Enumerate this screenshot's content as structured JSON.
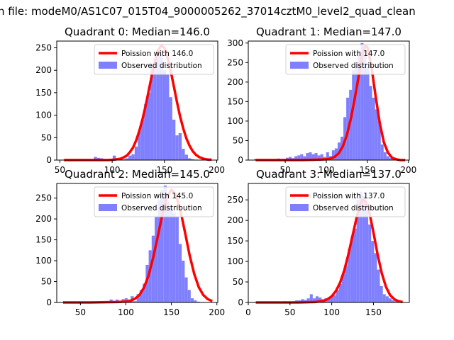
{
  "figure": {
    "suptitle": "n file: modeM0/AS1C07_015T04_9000005262_37014cztM0_level2_quad_clean"
  },
  "colors": {
    "fit": "#ff0000",
    "hist": "#8080ff"
  },
  "chart_data": [
    {
      "type": "bar",
      "title": "Quadrant 0: Median=146.0",
      "median": 146.0,
      "xlim": [
        47,
        201
      ],
      "ylim": [
        0,
        265
      ],
      "xticks": [
        50,
        100,
        150,
        200
      ],
      "yticks": [
        0,
        50,
        100,
        150,
        200,
        250
      ],
      "legend": {
        "placement": "top-right",
        "entries": [
          "Poission with 146.0",
          "Observed distribution"
        ]
      },
      "series": [
        {
          "name": "Observed distribution",
          "type": "histogram",
          "bin_width": 3,
          "x": [
            54,
            57,
            60,
            63,
            66,
            69,
            72,
            75,
            78,
            81,
            84,
            87,
            90,
            93,
            96,
            99,
            102,
            105,
            108,
            111,
            114,
            117,
            120,
            123,
            126,
            129,
            132,
            135,
            138,
            141,
            144,
            147,
            150,
            153,
            156,
            159,
            162,
            165,
            168,
            171,
            174,
            177,
            180,
            183,
            186,
            189,
            192,
            195
          ],
          "y": [
            1,
            1,
            1,
            1,
            1,
            1,
            1,
            1,
            1,
            1,
            7,
            5,
            4,
            2,
            1,
            1,
            10,
            1,
            1,
            2,
            4,
            10,
            13,
            30,
            65,
            90,
            125,
            150,
            215,
            225,
            245,
            235,
            200,
            190,
            140,
            90,
            55,
            60,
            25,
            12,
            4,
            2,
            1,
            0,
            0,
            0,
            0,
            0
          ]
        },
        {
          "name": "Poission with 146.0",
          "type": "line",
          "x": [
            54,
            60,
            66,
            72,
            78,
            84,
            90,
            96,
            102,
            105,
            108,
            111,
            114,
            117,
            120,
            123,
            126,
            129,
            132,
            135,
            138,
            141,
            144,
            147,
            150,
            153,
            156,
            159,
            162,
            165,
            168,
            171,
            174,
            177,
            180,
            183,
            186,
            189,
            192,
            195
          ],
          "y": [
            0,
            0,
            0,
            0,
            0,
            0,
            0,
            0,
            1,
            2,
            3,
            6,
            10,
            18,
            28,
            44,
            65,
            91,
            121,
            155,
            189,
            221,
            245,
            255,
            250,
            229,
            198,
            164,
            129,
            97,
            70,
            48,
            32,
            20,
            12,
            7,
            4,
            2,
            1,
            1
          ]
        }
      ]
    },
    {
      "type": "bar",
      "title": "Quadrant 1: Median=147.0",
      "median": 147.0,
      "xlim": [
        5,
        201
      ],
      "ylim": [
        0,
        305
      ],
      "xticks": [
        50,
        100,
        150,
        200
      ],
      "yticks": [
        0,
        50,
        100,
        150,
        200,
        250,
        300
      ],
      "legend": {
        "placement": "top-right",
        "entries": [
          "Poission with 147.0",
          "Observed distribution"
        ]
      },
      "series": [
        {
          "name": "Observed distribution",
          "type": "histogram",
          "bin_width": 3.5,
          "x": [
            14,
            17.5,
            21,
            24.5,
            28,
            31.5,
            35,
            38.5,
            42,
            45.5,
            49,
            52.5,
            56,
            59.5,
            63,
            66.5,
            70,
            73.5,
            77,
            80.5,
            84,
            87.5,
            91,
            94.5,
            98,
            101.5,
            105,
            108.5,
            112,
            115.5,
            119,
            122.5,
            126,
            129.5,
            133,
            136.5,
            140,
            143.5,
            147,
            150.5,
            154,
            157.5,
            161,
            164.5,
            168,
            171.5,
            175,
            178.5,
            182,
            185.5,
            189,
            192.5,
            196
          ],
          "y": [
            3,
            2,
            1,
            2,
            2,
            2,
            1,
            2,
            4,
            2,
            3,
            6,
            8,
            5,
            10,
            12,
            15,
            10,
            18,
            20,
            15,
            18,
            12,
            15,
            8,
            20,
            10,
            25,
            30,
            45,
            60,
            110,
            160,
            180,
            230,
            250,
            280,
            300,
            270,
            240,
            190,
            160,
            130,
            100,
            40,
            20,
            10,
            5,
            3,
            2,
            1,
            1,
            0
          ]
        },
        {
          "name": "Poission with 147.0",
          "type": "line",
          "x": [
            14,
            30,
            50,
            70,
            90,
            100,
            105,
            110,
            115,
            120,
            125,
            130,
            135,
            140,
            143.5,
            147,
            150,
            155,
            160,
            165,
            170,
            175,
            180,
            185,
            190,
            196
          ],
          "y": [
            0,
            0,
            0,
            0,
            1,
            2,
            4,
            8,
            17,
            35,
            64,
            108,
            163,
            223,
            268,
            292,
            290,
            238,
            164,
            95,
            46,
            19,
            6,
            2,
            0,
            0
          ]
        }
      ]
    },
    {
      "type": "bar",
      "title": "Quadrant 2: Median=145.0",
      "median": 145.0,
      "xlim": [
        24,
        201
      ],
      "ylim": [
        0,
        285
      ],
      "xticks": [
        50,
        100,
        150,
        200
      ],
      "yticks": [
        0,
        50,
        100,
        150,
        200,
        250
      ],
      "legend": {
        "placement": "top-right",
        "entries": [
          "Poission with 145.0",
          "Observed distribution"
        ]
      },
      "series": [
        {
          "name": "Observed distribution",
          "type": "histogram",
          "bin_width": 3.3,
          "x": [
            31,
            34.3,
            37.6,
            40.9,
            44.2,
            47.5,
            50.8,
            54.1,
            57.4,
            60.7,
            64,
            67.3,
            70.6,
            73.9,
            77.2,
            80.5,
            83.8,
            87.1,
            90.4,
            93.7,
            97,
            100.3,
            103.6,
            106.9,
            110.2,
            113.5,
            116.8,
            120.1,
            123.4,
            126.7,
            130,
            133.3,
            136.6,
            139.9,
            143.2,
            146.5,
            149.8,
            153.1,
            156.4,
            159.7,
            163,
            166.3,
            169.6,
            172.9,
            176.2,
            179.5,
            182.8,
            186.1,
            189.4,
            192.7
          ],
          "y": [
            1,
            1,
            1,
            1,
            1,
            1,
            1,
            1,
            1,
            1,
            1,
            1,
            1,
            1,
            1,
            2,
            7,
            4,
            7,
            3,
            8,
            10,
            7,
            15,
            3,
            20,
            30,
            45,
            90,
            125,
            160,
            205,
            245,
            270,
            280,
            240,
            225,
            215,
            205,
            140,
            100,
            60,
            30,
            10,
            5,
            2,
            1,
            1,
            0,
            0
          ]
        },
        {
          "name": "Poission with 145.0",
          "type": "line",
          "x": [
            31,
            60,
            90,
            100,
            105,
            110,
            115,
            120,
            125,
            130,
            135,
            140,
            145,
            150,
            155,
            160,
            165,
            170,
            175,
            180,
            185,
            190,
            195
          ],
          "y": [
            0,
            0,
            1,
            2,
            4,
            9,
            18,
            36,
            65,
            107,
            158,
            210,
            252,
            270,
            258,
            220,
            168,
            114,
            69,
            37,
            18,
            8,
            3
          ]
        }
      ]
    },
    {
      "type": "bar",
      "title": "Quadrant 3: Median=137.0",
      "median": 137.0,
      "xlim": [
        0,
        193
      ],
      "ylim": [
        0,
        290
      ],
      "xticks": [
        0,
        50,
        100,
        150
      ],
      "yticks": [
        0,
        50,
        100,
        150,
        200,
        250
      ],
      "legend": {
        "placement": "top-right",
        "entries": [
          "Poission with 137.0",
          "Observed distribution"
        ]
      },
      "series": [
        {
          "name": "Observed distribution",
          "type": "histogram",
          "bin_width": 3.5,
          "x": [
            9,
            12.5,
            16,
            19.5,
            23,
            26.5,
            30,
            33.5,
            37,
            40.5,
            44,
            47.5,
            51,
            54.5,
            58,
            61.5,
            65,
            68.5,
            72,
            75.5,
            79,
            82.5,
            86,
            89.5,
            93,
            96.5,
            100,
            103.5,
            107,
            110.5,
            114,
            117.5,
            121,
            124.5,
            128,
            131.5,
            135,
            138.5,
            142,
            145.5,
            149,
            152.5,
            156,
            159.5,
            163,
            166.5,
            170,
            173.5,
            177,
            180.5,
            184
          ],
          "y": [
            1,
            1,
            1,
            1,
            2,
            1,
            2,
            1,
            1,
            1,
            3,
            2,
            2,
            3,
            5,
            5,
            8,
            6,
            10,
            20,
            10,
            15,
            12,
            8,
            10,
            10,
            15,
            18,
            30,
            45,
            70,
            90,
            130,
            160,
            180,
            250,
            270,
            260,
            240,
            190,
            150,
            120,
            80,
            40,
            20,
            15,
            10,
            5,
            3,
            1,
            0
          ]
        },
        {
          "name": "Poission with 137.0",
          "type": "line",
          "x": [
            9,
            40,
            60,
            80,
            90,
            95,
            100,
            105,
            110,
            115,
            120,
            125,
            130,
            135,
            137,
            140,
            145,
            150,
            155,
            160,
            165,
            170,
            175,
            180,
            185
          ],
          "y": [
            0,
            0,
            0,
            1,
            4,
            8,
            15,
            28,
            48,
            78,
            117,
            163,
            208,
            243,
            250,
            248,
            221,
            171,
            117,
            71,
            38,
            18,
            8,
            3,
            1
          ]
        }
      ]
    }
  ]
}
